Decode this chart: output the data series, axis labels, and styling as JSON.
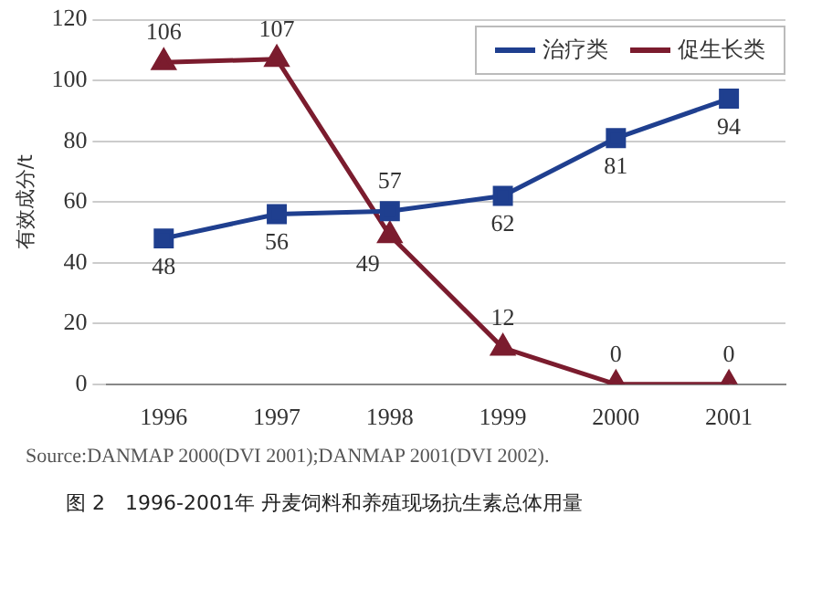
{
  "chart_data": {
    "type": "line",
    "ylabel": "有效成分/t",
    "categories": [
      "1996",
      "1997",
      "1998",
      "1999",
      "2000",
      "2001"
    ],
    "series": [
      {
        "name": "治疗类",
        "color": "#1f3f8f",
        "marker": "square",
        "values": [
          48,
          56,
          57,
          62,
          81,
          94
        ]
      },
      {
        "name": "促生长类",
        "color": "#7b1c2e",
        "marker": "triangle",
        "values": [
          106,
          107,
          49,
          12,
          0,
          0
        ]
      }
    ],
    "ylim": [
      0,
      120
    ],
    "yticks": [
      0,
      20,
      40,
      60,
      80,
      100,
      120
    ],
    "grid": "y",
    "legend": "top right",
    "data_labels": true,
    "annotations": [
      "Source:DANMAP 2000(DVI 2001);DANMAP 2001(DVI 2002).",
      "图 2　1996-2001年 丹麦饲料和养殖现场抗生素总体用量"
    ]
  }
}
